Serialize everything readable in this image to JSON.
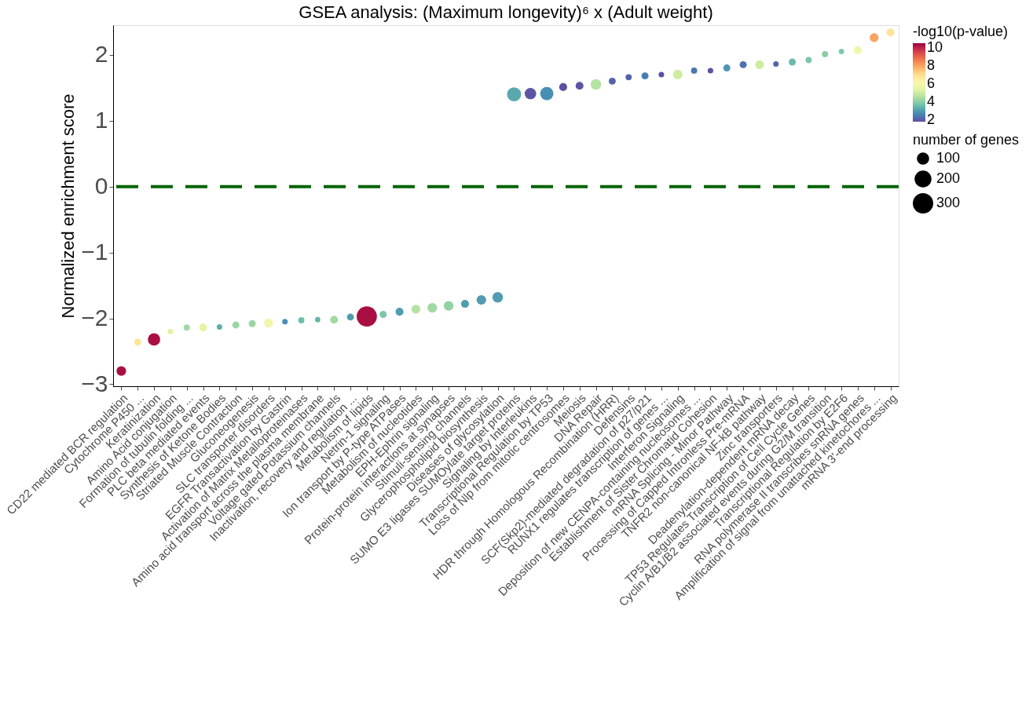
{
  "chart_data": {
    "type": "bubble",
    "title": "GSEA analysis: (Maximum longevity)⁶ x (Adult weight)",
    "ylabel": "Normalized enrichment score",
    "categories": [
      "CD22 mediated BCR regulation",
      "Cytochrome P450 ...",
      "Keratinization",
      "Amino Acid conjugation",
      "Formation of tubulin folding ...",
      "PLC beta mediated events",
      "Synthesis of Ketone Bodies",
      "Striated Muscle Contraction",
      "Gluconeogenesis",
      "SLC transporter disorders",
      "EGFR Transactivation by Gastrin",
      "Activation of Matrix Metalloproteinases",
      "Amino acid transport across the plasma membrane",
      "Voltage gated Potassium channels",
      "Inactivation, recovery and regulation ...",
      "Metabolism of lipids",
      "Netrin-1 signaling",
      "Ion transport by P-type ATPases",
      "Metabolism of nucleotides",
      "EPH-Ephrin signaling",
      "Protein-protein interactions at synapses",
      "Stimuli-sensing channels",
      "Glycerophospholipid biosynthesis",
      "Diseases of glycosylation",
      "SUMO E3 ligases SUMOylate target proteins",
      "Signaling by Interleukins",
      "Transcriptional Regulation by TP53",
      "Loss of Nlp from mitotic centrosomes",
      "Meiosis",
      "DNA Repair",
      "HDR through Homologous Recombination (HRR)",
      "Defensins",
      "SCF(Skp2)-mediated degradation of p27/p21",
      "RUNX1 regulates transcription of genes ...",
      "Interferon Signaling",
      "Deposition of new CENPA-containing nucleosomes ...",
      "Establishment of Sister Chromatid Cohesion",
      "mRNA Splicing - Minor Pathway",
      "Processing of Capped Intronless Pre-mRNA",
      "TNFR2 non-canonical NF-kB pathway",
      "Zinc transporters",
      "Deadenylation-dependent mRNA decay",
      "TP53 Regulates Transcription of Cell Cycle Genes",
      "Cyclin A/B1/B2 associated events during G2/M transition",
      "Transcriptional Regulation by E2F6",
      "RNA polymerase II transcribes snRNA genes",
      "Amplification  of signal from unattached  kinetochores ...",
      "mRNA 3'-end processing"
    ],
    "values": [
      -2.8,
      -2.36,
      -2.32,
      -2.2,
      -2.14,
      -2.14,
      -2.13,
      -2.1,
      -2.08,
      -2.07,
      -2.05,
      -2.03,
      -2.02,
      -2.02,
      -1.98,
      -1.97,
      -1.94,
      -1.9,
      -1.86,
      -1.84,
      -1.81,
      -1.78,
      -1.72,
      -1.68,
      1.4,
      1.41,
      1.41,
      1.51,
      1.53,
      1.55,
      1.6,
      1.66,
      1.68,
      1.7,
      1.7,
      1.76,
      1.76,
      1.8,
      1.85,
      1.85,
      1.86,
      1.89,
      1.92,
      2.01,
      2.05,
      2.07,
      2.26,
      2.34
    ],
    "sizes": [
      75,
      40,
      123,
      25,
      31,
      51,
      25,
      40,
      40,
      63,
      25,
      31,
      23,
      51,
      40,
      332,
      40,
      51,
      63,
      75,
      75,
      51,
      75,
      91,
      161,
      107,
      142,
      51,
      51,
      91,
      40,
      31,
      40,
      25,
      75,
      31,
      25,
      40,
      40,
      63,
      25,
      40,
      31,
      31,
      23,
      51,
      63,
      51
    ],
    "cvalues": [
      10.3,
      6.8,
      10.3,
      5.3,
      4.3,
      5.5,
      3.3,
      4.2,
      4.2,
      5.8,
      2.8,
      3.6,
      3.4,
      4.3,
      3.0,
      10.3,
      3.8,
      3.0,
      4.6,
      4.3,
      4.1,
      3.0,
      3.0,
      3.0,
      3.2,
      1.9,
      2.8,
      1.8,
      1.9,
      4.6,
      2.1,
      2.1,
      2.5,
      1.8,
      5.0,
      2.4,
      1.8,
      2.9,
      2.3,
      5.0,
      2.1,
      3.5,
      3.8,
      4.0,
      3.8,
      5.8,
      8.0,
      6.8
    ],
    "size_legend": [
      100,
      200,
      300
    ],
    "legend_title": "number of genes",
    "clabel": "-log10(p-value)",
    "clim": [
      1.8,
      10.5
    ],
    "cticks": [
      2,
      4,
      6,
      8,
      10
    ],
    "ylim": [
      -3.03,
      2.45
    ],
    "yticks": [
      -3,
      -2,
      -1,
      0,
      1,
      2
    ],
    "grid": false,
    "ref_lines": [
      {
        "axis": "y",
        "value": 0,
        "color": "#006400",
        "line_style": "dashed"
      }
    ]
  }
}
